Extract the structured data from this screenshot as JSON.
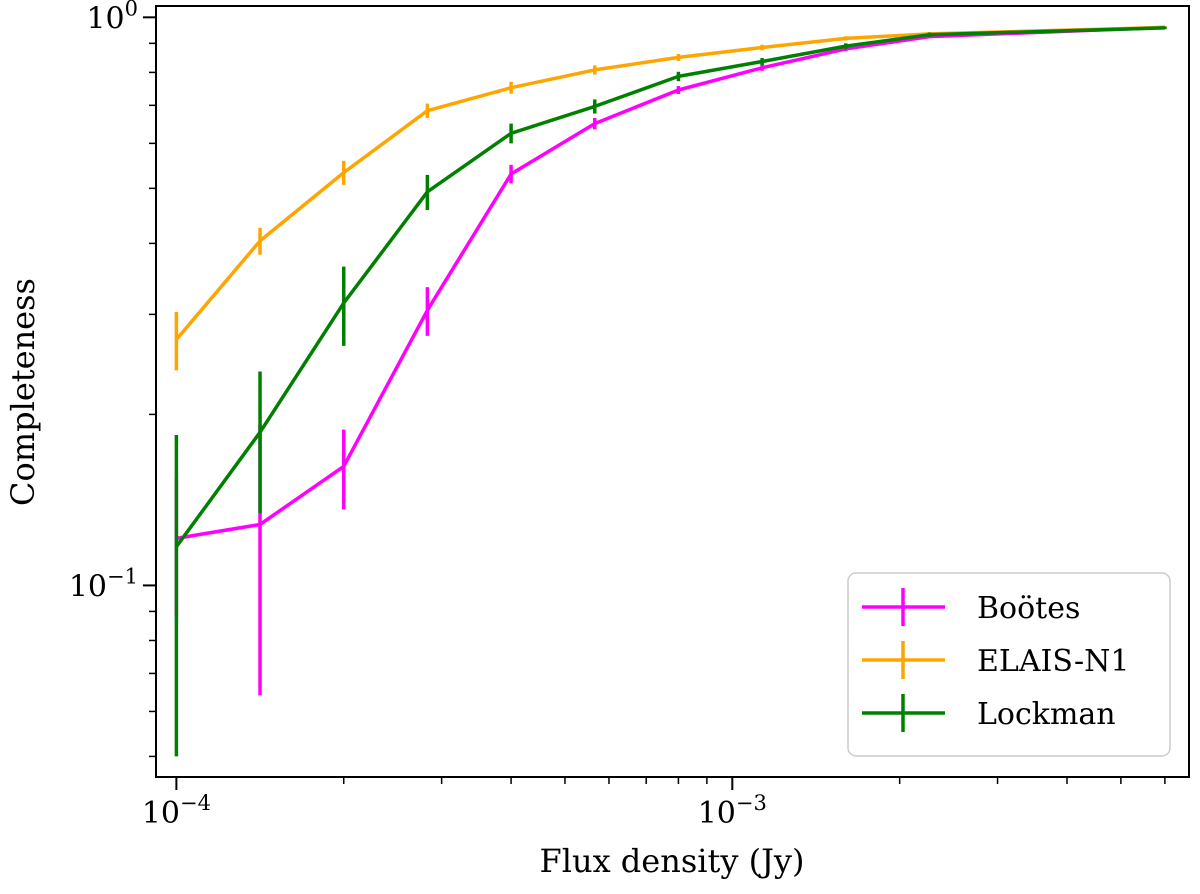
{
  "chart_data": {
    "type": "line",
    "title": "",
    "xlabel": "Flux density (Jy)",
    "ylabel": "Completeness",
    "xscale": "log",
    "yscale": "log",
    "xlim": [
      9.19e-05,
      0.00663
    ],
    "ylim": [
      0.046,
      1.047
    ],
    "grid": false,
    "legend_position": "lower-right",
    "x_ticks": [
      {
        "value": 0.0001,
        "base": "10",
        "exp": "−4"
      },
      {
        "value": 0.001,
        "base": "10",
        "exp": "−3"
      }
    ],
    "y_ticks": [
      {
        "value": 0.1,
        "base": "10",
        "exp": "−1"
      },
      {
        "value": 1.0,
        "base": "10",
        "exp": "0"
      }
    ],
    "x": [
      0.0001,
      0.0001414,
      0.0002,
      0.0002828,
      0.0004,
      0.0005657,
      0.0008,
      0.0011314,
      0.0016,
      0.0022627,
      0.006
    ],
    "series": [
      {
        "name": "Boötes",
        "color": "#ff00ff",
        "values": [
          0.121,
          0.128,
          0.162,
          0.305,
          0.53,
          0.65,
          0.745,
          0.815,
          0.88,
          0.925,
          0.96
        ],
        "err_low": [
          0.033,
          0.064,
          0.026,
          0.03,
          0.02,
          0.015,
          0.012,
          0.01,
          0.008,
          0.006,
          0.004
        ],
        "err_high": [
          0.033,
          0.064,
          0.026,
          0.03,
          0.02,
          0.015,
          0.012,
          0.01,
          0.008,
          0.006,
          0.004
        ]
      },
      {
        "name": "ELAIS-N1",
        "color": "#ffa500",
        "values": [
          0.271,
          0.404,
          0.533,
          0.685,
          0.752,
          0.808,
          0.85,
          0.885,
          0.918,
          0.935,
          0.96
        ],
        "err_low": [
          0.032,
          0.022,
          0.026,
          0.02,
          0.018,
          0.015,
          0.012,
          0.01,
          0.008,
          0.007,
          0.005
        ],
        "err_high": [
          0.032,
          0.022,
          0.026,
          0.02,
          0.018,
          0.015,
          0.012,
          0.01,
          0.008,
          0.007,
          0.005
        ]
      },
      {
        "name": "Lockman",
        "color": "#008000",
        "values": [
          0.117,
          0.186,
          0.314,
          0.493,
          0.625,
          0.697,
          0.787,
          0.836,
          0.89,
          0.932,
          0.958
        ],
        "err_low": [
          0.067,
          0.052,
          0.05,
          0.035,
          0.025,
          0.02,
          0.015,
          0.012,
          0.01,
          0.008,
          0.005
        ],
        "err_high": [
          0.067,
          0.052,
          0.05,
          0.035,
          0.025,
          0.02,
          0.015,
          0.012,
          0.01,
          0.008,
          0.005
        ]
      }
    ]
  }
}
